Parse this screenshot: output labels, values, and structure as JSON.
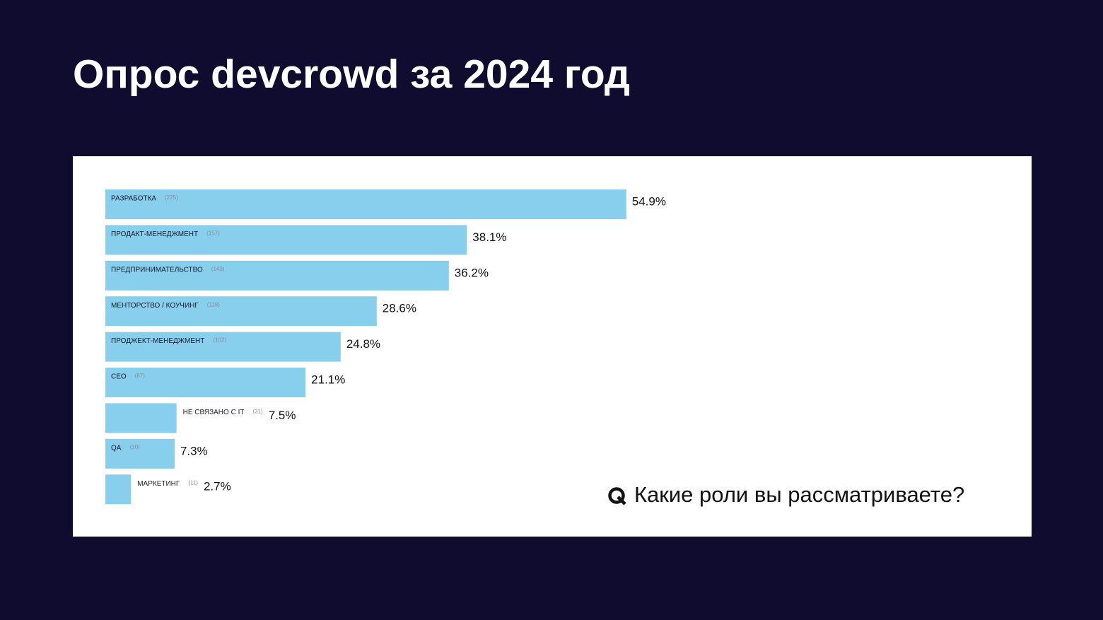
{
  "chart_data": {
    "type": "bar",
    "orientation": "horizontal",
    "title": "Опрос devcrowd за 2024 год",
    "question": "Какие роли вы рассматриваете?",
    "categories": [
      "РАЗРАБОТКА",
      "ПРОДАКТ-МЕНЕДЖМЕНТ",
      "ПРЕДПРИНИМАТЕЛЬСТВО",
      "МЕНТОРСТВО / КОУЧИНГ",
      "ПРОДЖЕКТ-МЕНЕДЖМЕНТ",
      "CEO",
      "НЕ СВЯЗАНО С IT",
      "QA",
      "МАРКЕТИНГ"
    ],
    "count_labels": [
      "(225)",
      "(157)",
      "(149)",
      "(118)",
      "(102)",
      "(87)",
      "(31)",
      "(30)",
      "(11)"
    ],
    "values": [
      54.9,
      38.1,
      36.2,
      28.6,
      24.8,
      21.1,
      7.5,
      7.3,
      2.7
    ],
    "value_labels": [
      "54.9%",
      "38.1%",
      "36.2%",
      "28.6%",
      "24.8%",
      "21.1%",
      "7.5%",
      "7.3%",
      "2.7%"
    ],
    "color": "#88cfee"
  }
}
